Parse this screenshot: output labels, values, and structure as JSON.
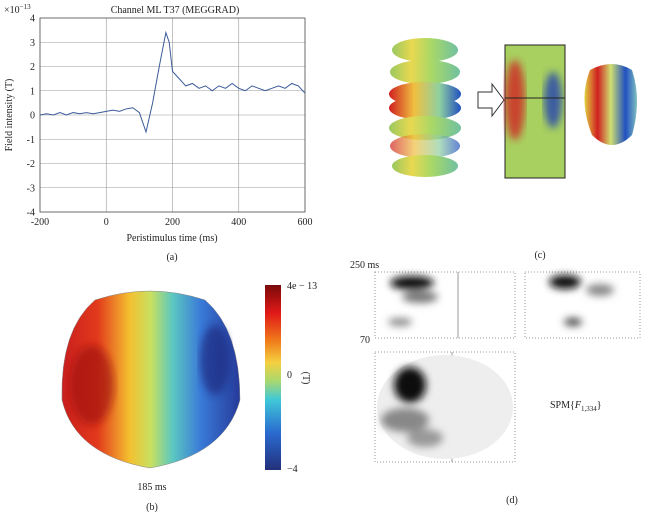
{
  "chart_data": {
    "type": "line",
    "title": "Channel ML T37 (MEGGRAD)",
    "x_label": "Peristimulus time (ms)",
    "y_label": "Field intensity (T)",
    "y_multiplier": {
      "base": "×10",
      "exp": "−13"
    },
    "caption": "(a)",
    "xlim": [
      -200,
      600
    ],
    "xticks": [
      -200,
      0,
      200,
      400,
      600
    ],
    "ylim": [
      -4,
      4
    ],
    "yticks": [
      -4,
      -3,
      -2,
      -1,
      0,
      1,
      2,
      3,
      4
    ],
    "grid": true,
    "x": [
      -200,
      -180,
      -160,
      -140,
      -120,
      -100,
      -80,
      -60,
      -40,
      -20,
      0,
      20,
      40,
      60,
      80,
      100,
      120,
      140,
      160,
      180,
      190,
      200,
      220,
      240,
      260,
      280,
      300,
      320,
      340,
      360,
      380,
      400,
      420,
      440,
      460,
      480,
      500,
      520,
      540,
      560,
      580,
      600
    ],
    "series": [
      {
        "name": "ML T37",
        "color": "#3b5b9a",
        "values": [
          0.0,
          0.05,
          0.0,
          0.1,
          0.0,
          0.1,
          0.05,
          0.1,
          0.05,
          0.1,
          0.15,
          0.2,
          0.15,
          0.25,
          0.3,
          0.1,
          -0.7,
          0.5,
          2.0,
          3.4,
          3.0,
          1.8,
          1.5,
          1.2,
          1.3,
          1.1,
          1.2,
          1.0,
          1.2,
          1.1,
          1.3,
          1.1,
          1.0,
          1.2,
          1.1,
          1.0,
          1.1,
          1.2,
          1.1,
          1.3,
          1.2,
          0.9
        ]
      }
    ]
  },
  "panel_b": {
    "colorbar_labels": [
      "4e − 13",
      "0",
      "−4"
    ],
    "unit": "(T)",
    "time": "185 ms",
    "caption": "(b)"
  },
  "panel_c": {
    "caption": "(c)"
  },
  "panel_d": {
    "top_label": "250 ms",
    "bottom_label": "70",
    "spm": {
      "prefix": "SPM{",
      "var": "F",
      "sub": "1,334",
      "suffix": "}"
    },
    "caption": "(d)"
  }
}
